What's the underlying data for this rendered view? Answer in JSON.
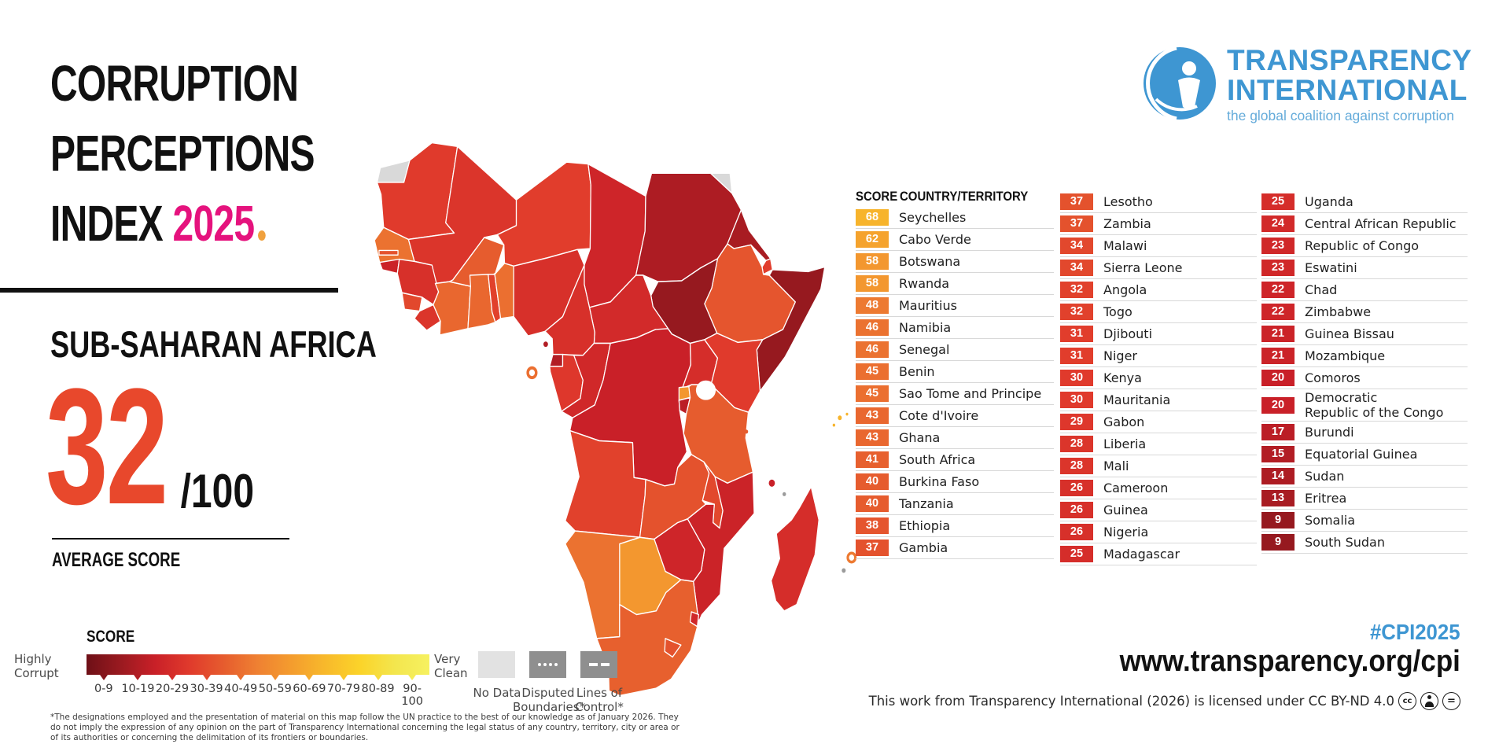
{
  "title": {
    "line1": "CORRUPTION",
    "line2": "PERCEPTIONS",
    "line3": "INDEX",
    "year": "2025"
  },
  "region": {
    "name": "SUB-SAHARAN AFRICA",
    "average_score": "32",
    "score_max": "/100",
    "average_label": "AVERAGE SCORE"
  },
  "logo": {
    "name_line1": "TRANSPARENCY",
    "name_line2": "INTERNATIONAL",
    "tagline": "the global coalition against corruption"
  },
  "table": {
    "score_header": "SCORE",
    "country_header": "COUNTRY/TERRITORY",
    "column_counts": [
      16,
      17,
      16
    ]
  },
  "legend": {
    "title": "SCORE",
    "left_label_line1": "Highly",
    "left_label_line2": "Corrupt",
    "right_label_line1": "Very",
    "right_label_line2": "Clean",
    "ranges": [
      "0-9",
      "10-19",
      "20-29",
      "30-39",
      "40-49",
      "50-59",
      "60-69",
      "70-79",
      "80-89",
      "90-100"
    ],
    "no_data_label": "No Data",
    "disputed_label_line1": "Disputed",
    "disputed_label_line2": "Boundaries*",
    "lines_label_line1": "Lines of",
    "lines_label_line2": "Control*"
  },
  "footer": {
    "hashtag": "#CPI2025",
    "url": "www.transparency.org/cpi",
    "license": "This work from Transparency International (2026) is licensed under CC BY-ND 4.0",
    "footnote": "*The designations employed and the presentation of material on this map follow the UN practice to the best of our knowledge as of January 2026. They do not imply the expression of any opinion on the part of Transparency International concerning the legal status of any country, territory, city or area or of its authorities or concerning the delimitation of its frontiers or boundaries."
  },
  "colors": {
    "scale_anchors": [
      "#6e1017",
      "#9a1a20",
      "#c92028",
      "#e03a2c",
      "#e65c2e",
      "#ef8132",
      "#f49d2e",
      "#f8ba2b",
      "#fbd42a",
      "#f3e64e",
      "#f6f160"
    ],
    "accent_pink": "#e5127d",
    "accent_red": "#e8482c",
    "brand_blue": "#3e96d2",
    "no_data_gray": "#e2e2e2",
    "boundary_gray": "#8f8f8f"
  },
  "chart_data": {
    "type": "choropleth-map+table",
    "title": "Corruption Perceptions Index 2025",
    "region": "Sub-Saharan Africa",
    "average_score": 32,
    "scale_max": 100,
    "scale_ranges": [
      "0-9",
      "10-19",
      "20-29",
      "30-39",
      "40-49",
      "50-59",
      "60-69",
      "70-79",
      "80-89",
      "90-100"
    ],
    "entries": [
      {
        "country": "Seychelles",
        "score": 68
      },
      {
        "country": "Cabo Verde",
        "score": 62
      },
      {
        "country": "Botswana",
        "score": 58
      },
      {
        "country": "Rwanda",
        "score": 58
      },
      {
        "country": "Mauritius",
        "score": 48
      },
      {
        "country": "Namibia",
        "score": 46
      },
      {
        "country": "Senegal",
        "score": 46
      },
      {
        "country": "Benin",
        "score": 45
      },
      {
        "country": "Sao Tome and Principe",
        "score": 45
      },
      {
        "country": "Cote d'Ivoire",
        "score": 43
      },
      {
        "country": "Ghana",
        "score": 43
      },
      {
        "country": "South Africa",
        "score": 41
      },
      {
        "country": "Burkina Faso",
        "score": 40
      },
      {
        "country": "Tanzania",
        "score": 40
      },
      {
        "country": "Ethiopia",
        "score": 38
      },
      {
        "country": "Gambia",
        "score": 37
      },
      {
        "country": "Lesotho",
        "score": 37
      },
      {
        "country": "Zambia",
        "score": 37
      },
      {
        "country": "Malawi",
        "score": 34
      },
      {
        "country": "Sierra Leone",
        "score": 34
      },
      {
        "country": "Angola",
        "score": 32
      },
      {
        "country": "Togo",
        "score": 32
      },
      {
        "country": "Djibouti",
        "score": 31
      },
      {
        "country": "Niger",
        "score": 31
      },
      {
        "country": "Kenya",
        "score": 30
      },
      {
        "country": "Mauritania",
        "score": 30
      },
      {
        "country": "Gabon",
        "score": 29
      },
      {
        "country": "Liberia",
        "score": 28
      },
      {
        "country": "Mali",
        "score": 28
      },
      {
        "country": "Cameroon",
        "score": 26
      },
      {
        "country": "Guinea",
        "score": 26
      },
      {
        "country": "Nigeria",
        "score": 26
      },
      {
        "country": "Madagascar",
        "score": 25
      },
      {
        "country": "Uganda",
        "score": 25
      },
      {
        "country": "Central African Republic",
        "score": 24
      },
      {
        "country": "Republic of Congo",
        "score": 23
      },
      {
        "country": "Eswatini",
        "score": 23
      },
      {
        "country": "Chad",
        "score": 22
      },
      {
        "country": "Zimbabwe",
        "score": 22
      },
      {
        "country": "Guinea Bissau",
        "score": 21
      },
      {
        "country": "Mozambique",
        "score": 21
      },
      {
        "country": "Comoros",
        "score": 20
      },
      {
        "country": "Democratic Republic of the Congo",
        "score": 20
      },
      {
        "country": "Burundi",
        "score": 17
      },
      {
        "country": "Equatorial Guinea",
        "score": 15
      },
      {
        "country": "Sudan",
        "score": 14
      },
      {
        "country": "Eritrea",
        "score": 13
      },
      {
        "country": "Somalia",
        "score": 9
      },
      {
        "country": "South Sudan",
        "score": 9
      }
    ]
  }
}
